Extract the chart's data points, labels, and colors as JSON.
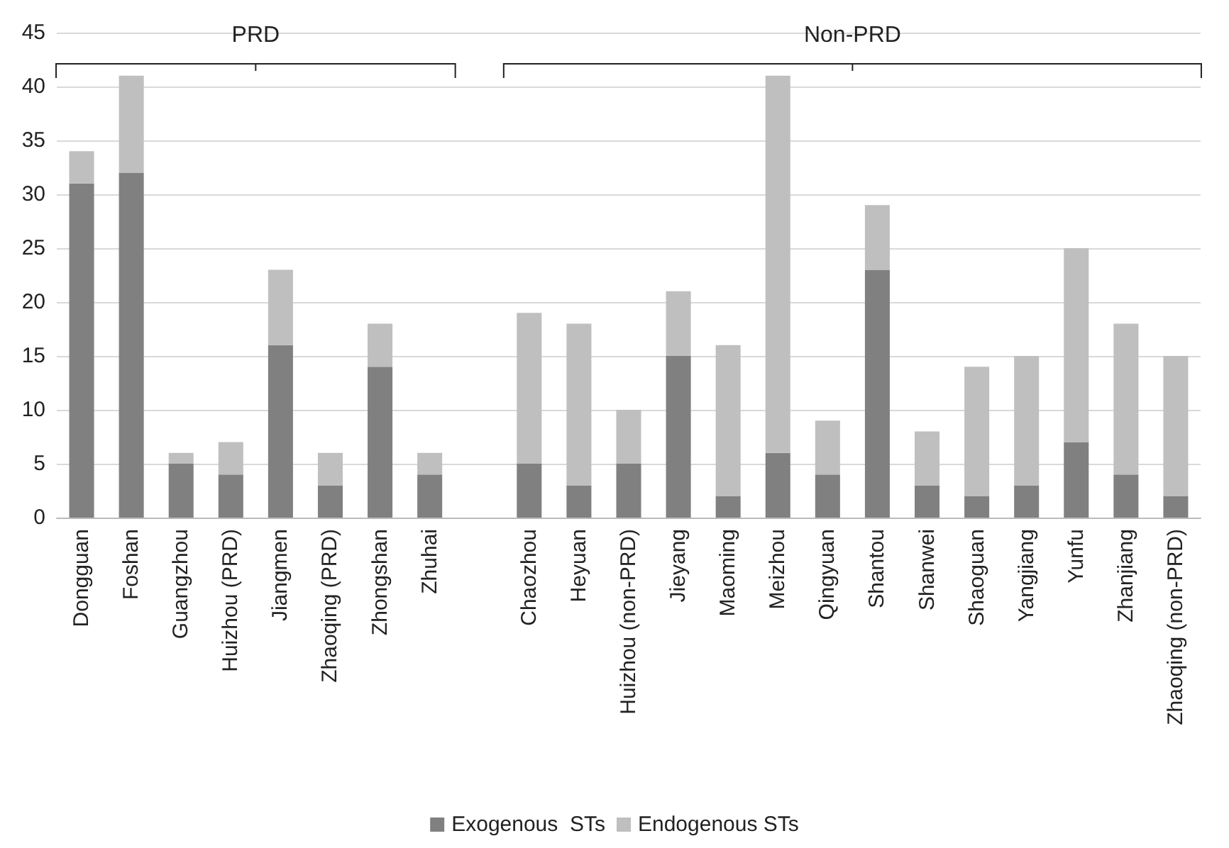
{
  "chart_data": {
    "type": "bar",
    "stacked": true,
    "categories": [
      "Dongguan",
      "Foshan",
      "Guangzhou",
      "Huizhou (PRD)",
      "Jiangmen",
      "Zhaoqing (PRD)",
      "Zhongshan",
      "Zhuhai",
      null,
      "Chaozhou",
      "Heyuan",
      "Huizhou (non-PRD)",
      "Jieyang",
      "Maoming",
      "Meizhou",
      "Qingyuan",
      "Shantou",
      "Shanwei",
      "Shaoguan",
      "Yangjiang",
      "Yunfu",
      "Zhanjiang",
      "Zhaoqing (non-PRD)"
    ],
    "series": [
      {
        "name": "Exogenous  STs",
        "color": "#808080",
        "values": [
          31,
          32,
          5,
          4,
          16,
          3,
          14,
          4,
          null,
          5,
          3,
          5,
          15,
          2,
          6,
          4,
          23,
          3,
          2,
          3,
          7,
          4,
          2
        ]
      },
      {
        "name": "Endogenous STs",
        "color": "#bfbfbf",
        "values": [
          3,
          9,
          1,
          3,
          7,
          3,
          4,
          2,
          null,
          14,
          15,
          5,
          6,
          14,
          35,
          5,
          6,
          5,
          12,
          12,
          18,
          14,
          13
        ]
      }
    ],
    "ylim": [
      0,
      45
    ],
    "yticks": [
      0,
      5,
      10,
      15,
      20,
      25,
      30,
      35,
      40,
      45
    ],
    "grid": "y",
    "legend": "bottom",
    "annotations": [
      "PRD",
      "Non-PRD"
    ]
  }
}
